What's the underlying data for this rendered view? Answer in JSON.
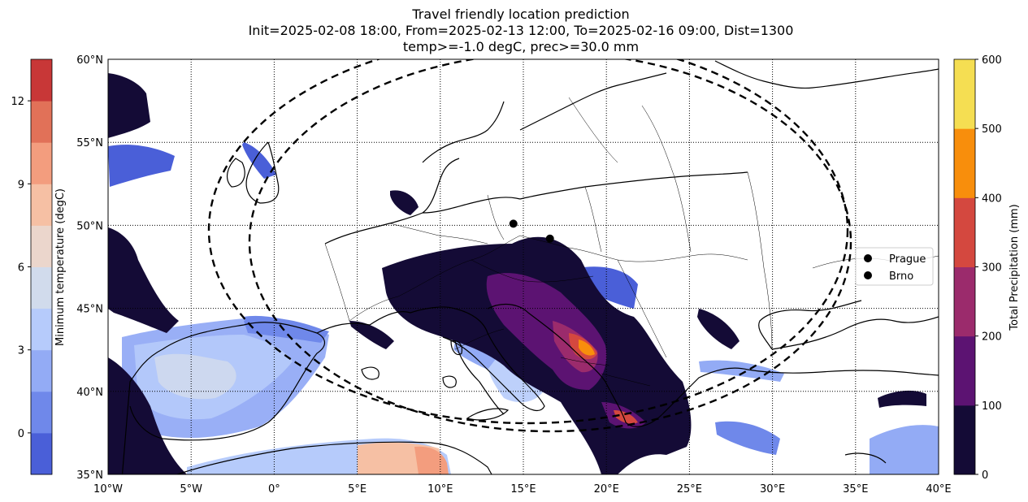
{
  "title": {
    "line1": "Travel friendly location prediction",
    "line2": "Init=2025-02-08 18:00, From=2025-02-13 12:00, To=2025-02-16 09:00, Dist=1300",
    "line3": "temp>=-1.0 degC, prec>=30.0 mm"
  },
  "colors": {
    "temp_levels": [
      "#4a5fd8",
      "#6f88ea",
      "#93abf5",
      "#b6cbfb",
      "#d1dbec",
      "#ebd6cc",
      "#f6c0a4",
      "#f39d7e",
      "#e17158",
      "#c83737"
    ],
    "prec_levels": [
      "#140b36",
      "#5c1372",
      "#9b2b6c",
      "#d4483f",
      "#f88e0c",
      "#f5de52"
    ],
    "land_line": "#000000"
  },
  "chart_data": {
    "type": "map",
    "lon_range": [
      -10,
      40
    ],
    "lat_range": [
      35,
      60
    ],
    "lon_ticks": [
      "10°W",
      "5°W",
      "0°",
      "5°E",
      "10°E",
      "15°E",
      "20°E",
      "25°E",
      "30°E",
      "35°E",
      "40°E"
    ],
    "lat_ticks": [
      "35°N",
      "40°N",
      "45°N",
      "50°N",
      "55°N",
      "60°N"
    ],
    "grid": true,
    "cities": [
      {
        "name": "Prague",
        "lon": 14.4,
        "lat": 50.1
      },
      {
        "name": "Brno",
        "lon": 16.6,
        "lat": 49.2
      }
    ],
    "legend_entries": [
      "Prague",
      "Brno"
    ],
    "legend_placement": "center-right",
    "temp_colorbar": {
      "label": "Minimum temperature (degC)",
      "ticks": [
        "0",
        "3",
        "6",
        "9",
        "12"
      ],
      "tick_values": [
        0,
        3,
        6,
        9,
        12
      ],
      "range": [
        -1.5,
        13.5
      ],
      "bins": 10
    },
    "prec_colorbar": {
      "label": "Total Precipitation (mm)",
      "ticks": [
        "0",
        "100",
        "200",
        "300",
        "400",
        "500",
        "600"
      ],
      "tick_values": [
        0,
        100,
        200,
        300,
        400,
        500,
        600
      ],
      "range": [
        0,
        600
      ],
      "bins": 6
    },
    "distance_circles_km": [
      1300
    ]
  }
}
